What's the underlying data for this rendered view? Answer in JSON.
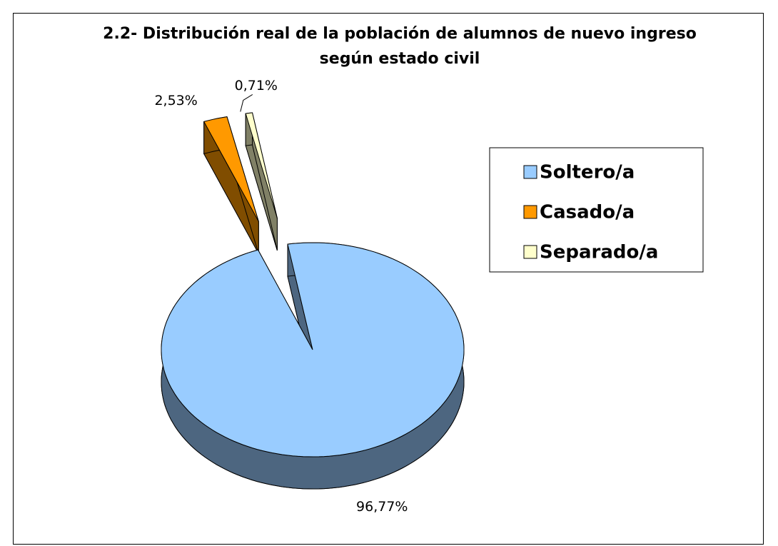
{
  "chart_data": {
    "type": "pie",
    "title": "2.2- Distribución real de la población de alumnos de nuevo ingreso según estado civil",
    "categories": [
      "Soltero/a",
      "Casado/a",
      "Separado/a"
    ],
    "values": [
      96.77,
      2.53,
      0.71
    ],
    "value_labels": [
      "96,77%",
      "2,53%",
      "0,71%"
    ],
    "colors": [
      "#99ccff",
      "#ff9900",
      "#ffffcc"
    ],
    "legend": "right"
  }
}
